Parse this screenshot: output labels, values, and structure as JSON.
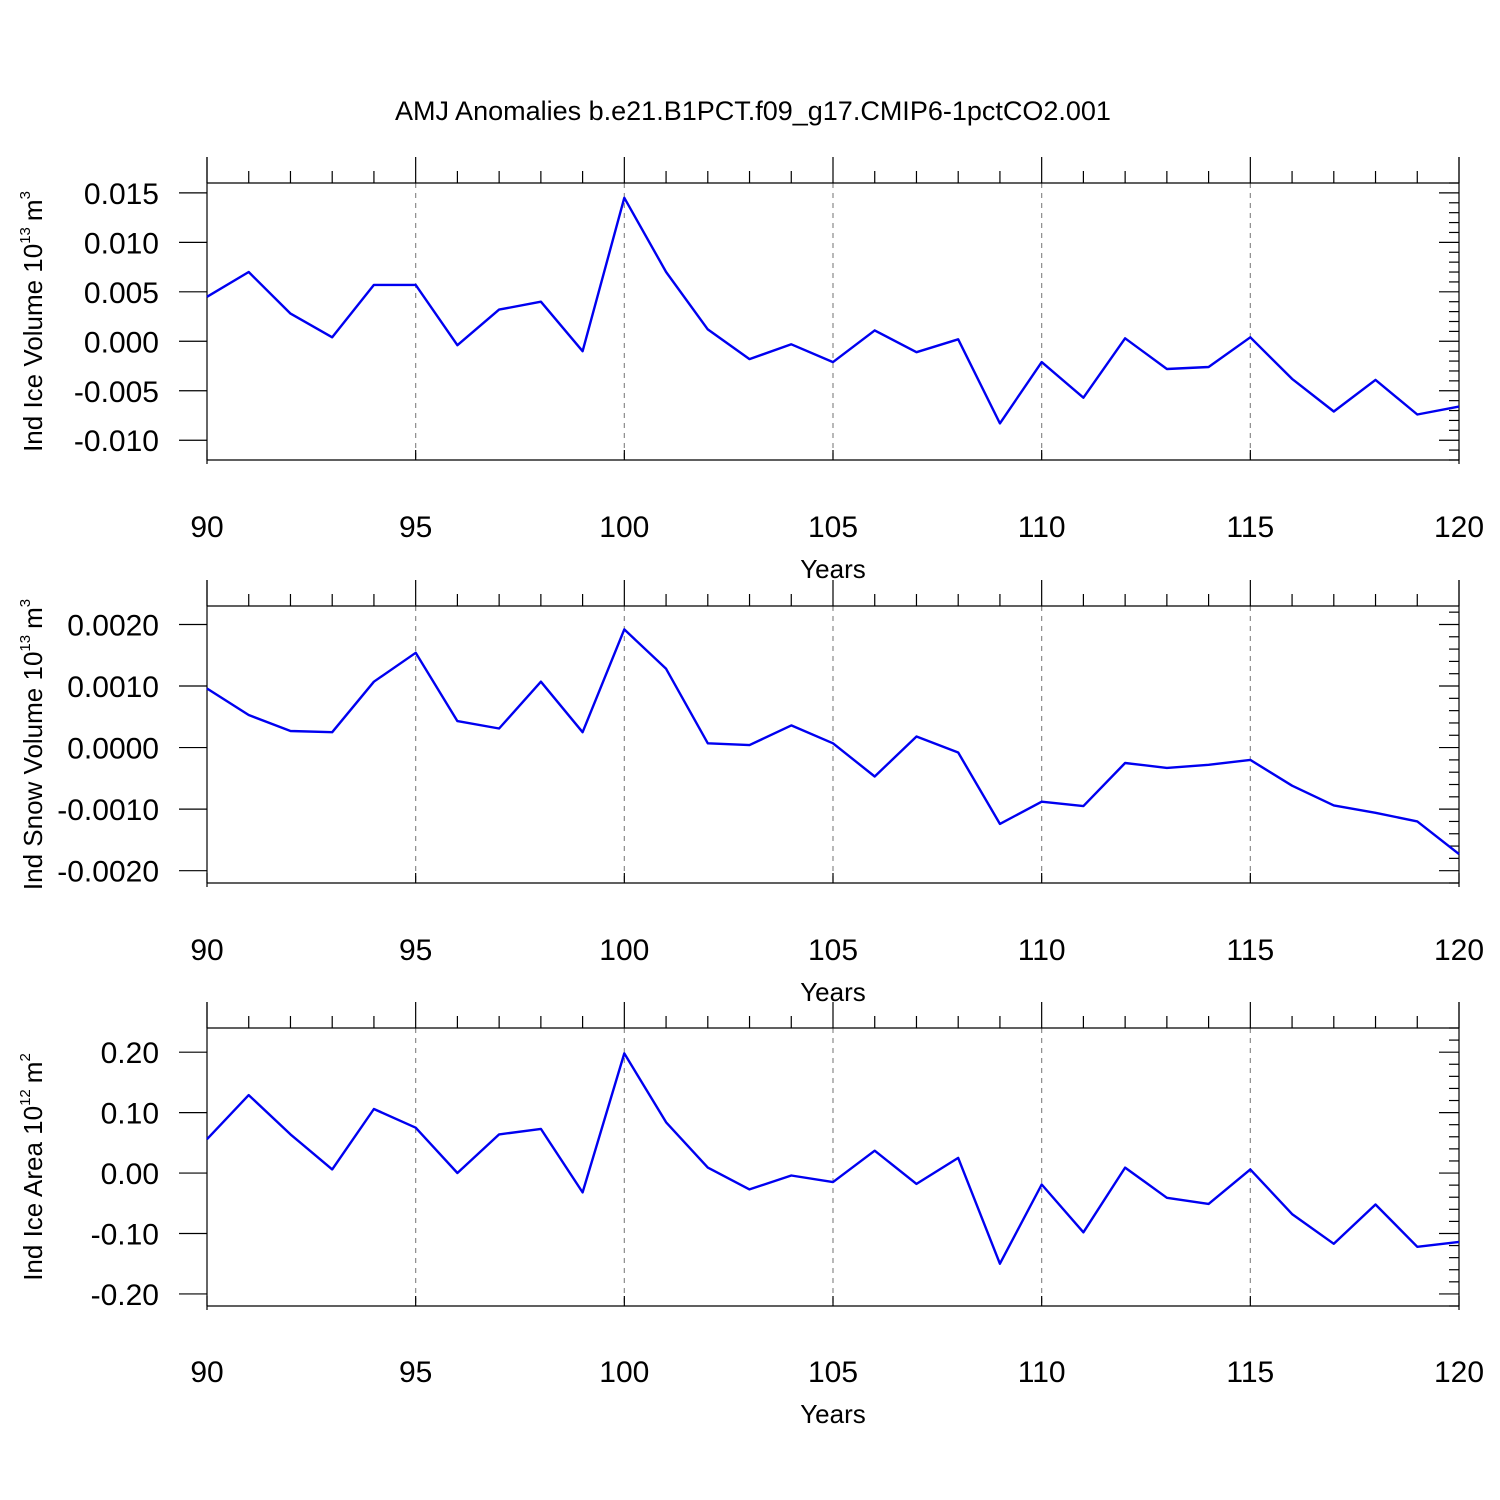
{
  "figure": {
    "title": "AMJ Anomalies b.e21.B1PCT.f09_g17.CMIP6-1pctCO2.001"
  },
  "chart_data": [
    {
      "type": "line",
      "ylabel_main": "Ind Ice Volume 10",
      "ylabel_exp": "13",
      "ylabel_unit": "m",
      "ylabel_unit_exp": "3",
      "xlabel": "Years",
      "xlim": [
        90,
        120
      ],
      "ylim": [
        -0.012,
        0.016
      ],
      "x_major_ticks": [
        90,
        95,
        100,
        105,
        110,
        115,
        120
      ],
      "x_tick_labels": [
        "90",
        "95",
        "100",
        "105",
        "110",
        "115",
        "120"
      ],
      "y_major_ticks": [
        0.015,
        0.01,
        0.005,
        0.0,
        -0.005,
        -0.01
      ],
      "y_tick_labels": [
        "0.015",
        "0.010",
        "0.005",
        "0.000",
        "-0.005",
        "-0.010"
      ],
      "y_minor_step": 0.001,
      "grid_x": true,
      "color": "#0000f0",
      "x": [
        90,
        91,
        92,
        93,
        94,
        95,
        96,
        97,
        98,
        99,
        100,
        101,
        102,
        103,
        104,
        105,
        106,
        107,
        108,
        109,
        110,
        111,
        112,
        113,
        114,
        115,
        116,
        117,
        118,
        119,
        120
      ],
      "values": [
        0.0045,
        0.007,
        0.0028,
        0.0004,
        0.0057,
        0.0057,
        -0.0004,
        0.0032,
        0.004,
        -0.001,
        0.0145,
        0.007,
        0.0012,
        -0.0018,
        -0.0003,
        -0.0021,
        0.0011,
        -0.0011,
        0.0002,
        -0.0083,
        -0.0021,
        -0.0057,
        0.0003,
        -0.0028,
        -0.0026,
        0.0004,
        -0.0038,
        -0.0071,
        -0.0039,
        -0.0074,
        -0.0066
      ]
    },
    {
      "type": "line",
      "ylabel_main": "Ind Snow Volume 10",
      "ylabel_exp": "13",
      "ylabel_unit": "m",
      "ylabel_unit_exp": "3",
      "xlabel": "Years",
      "xlim": [
        90,
        120
      ],
      "ylim": [
        -0.0022,
        0.0023
      ],
      "x_major_ticks": [
        90,
        95,
        100,
        105,
        110,
        115,
        120
      ],
      "x_tick_labels": [
        "90",
        "95",
        "100",
        "105",
        "110",
        "115",
        "120"
      ],
      "y_major_ticks": [
        0.002,
        0.001,
        0.0,
        -0.001,
        -0.002
      ],
      "y_tick_labels": [
        "0.0020",
        "0.0010",
        "0.0000",
        "-0.0010",
        "-0.0020"
      ],
      "y_minor_step": 0.0002,
      "grid_x": true,
      "color": "#0000f0",
      "x": [
        90,
        91,
        92,
        93,
        94,
        95,
        96,
        97,
        98,
        99,
        100,
        101,
        102,
        103,
        104,
        105,
        106,
        107,
        108,
        109,
        110,
        111,
        112,
        113,
        114,
        115,
        116,
        117,
        118,
        119,
        120
      ],
      "values": [
        0.00096,
        0.00053,
        0.00027,
        0.00025,
        0.00107,
        0.00154,
        0.00043,
        0.00031,
        0.00107,
        0.00025,
        0.00192,
        0.00128,
        7e-05,
        4e-05,
        0.00036,
        7e-05,
        -0.00047,
        0.00018,
        -8e-05,
        -0.00124,
        -0.00088,
        -0.00095,
        -0.00025,
        -0.00033,
        -0.00028,
        -0.0002,
        -0.00062,
        -0.00094,
        -0.00106,
        -0.0012,
        -0.00173
      ]
    },
    {
      "type": "line",
      "ylabel_main": "Ind Ice Area 10",
      "ylabel_exp": "12",
      "ylabel_unit": "m",
      "ylabel_unit_exp": "2",
      "xlabel": "Years",
      "xlim": [
        90,
        120
      ],
      "ylim": [
        -0.22,
        0.24
      ],
      "x_major_ticks": [
        90,
        95,
        100,
        105,
        110,
        115,
        120
      ],
      "x_tick_labels": [
        "90",
        "95",
        "100",
        "105",
        "110",
        "115",
        "120"
      ],
      "y_major_ticks": [
        0.2,
        0.1,
        0.0,
        -0.1,
        -0.2
      ],
      "y_tick_labels": [
        "0.20",
        "0.10",
        "0.00",
        "-0.10",
        "-0.20"
      ],
      "y_minor_step": 0.02,
      "grid_x": true,
      "color": "#0000f0",
      "x": [
        90,
        91,
        92,
        93,
        94,
        95,
        96,
        97,
        98,
        99,
        100,
        101,
        102,
        103,
        104,
        105,
        106,
        107,
        108,
        109,
        110,
        111,
        112,
        113,
        114,
        115,
        116,
        117,
        118,
        119,
        120
      ],
      "values": [
        0.056,
        0.129,
        0.064,
        0.006,
        0.106,
        0.075,
        0.0,
        0.064,
        0.073,
        -0.032,
        0.198,
        0.084,
        0.009,
        -0.027,
        -0.004,
        -0.015,
        0.037,
        -0.018,
        0.025,
        -0.15,
        -0.019,
        -0.098,
        0.009,
        -0.041,
        -0.051,
        0.006,
        -0.068,
        -0.117,
        -0.052,
        -0.122,
        -0.114
      ]
    }
  ]
}
